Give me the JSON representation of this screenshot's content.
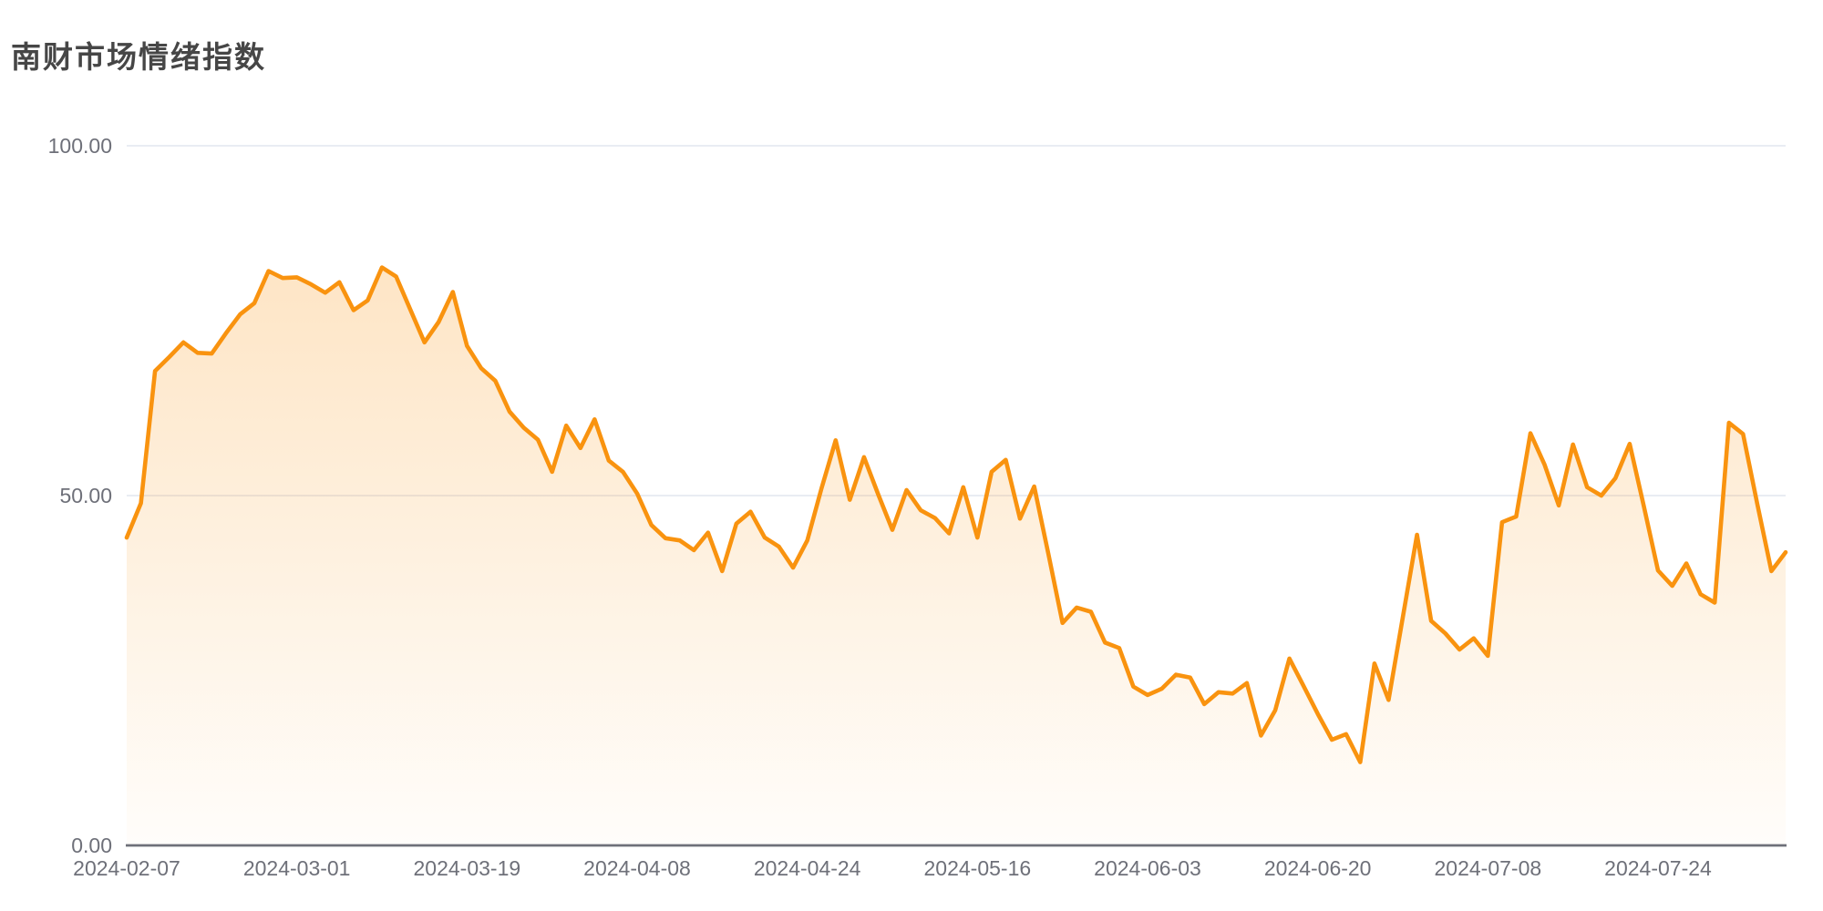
{
  "title": "南财市场情绪指数",
  "colors": {
    "line": "#F9930F",
    "area_top": "rgba(249,147,15,0.24)",
    "area_bottom": "rgba(249,147,15,0.02)",
    "grid": "#E2E6EF",
    "axis": "#6E7079",
    "label": "#6E7079",
    "title": "#464646"
  },
  "chart_data": {
    "type": "area",
    "title": "南财市场情绪指数",
    "legend": "none",
    "grid_lines": "horizontal",
    "ylim": [
      0,
      100
    ],
    "y_ticks": [
      {
        "value": 100,
        "label": "100.00"
      },
      {
        "value": 50,
        "label": "50.00"
      },
      {
        "value": 0,
        "label": "0.00"
      }
    ],
    "x_ticks": [
      {
        "index": 0,
        "label": "2024-02-07"
      },
      {
        "index": 12,
        "label": "2024-03-01"
      },
      {
        "index": 24,
        "label": "2024-03-19"
      },
      {
        "index": 36,
        "label": "2024-04-08"
      },
      {
        "index": 48,
        "label": "2024-04-24"
      },
      {
        "index": 60,
        "label": "2024-05-16"
      },
      {
        "index": 72,
        "label": "2024-06-03"
      },
      {
        "index": 84,
        "label": "2024-06-20"
      },
      {
        "index": 96,
        "label": "2024-07-08"
      },
      {
        "index": 108,
        "label": "2024-07-24"
      }
    ],
    "series": [
      {
        "name": "南财市场情绪指数",
        "values": [
          44.0,
          48.9,
          67.8,
          69.8,
          71.9,
          70.4,
          70.3,
          73.2,
          75.9,
          77.5,
          82.1,
          81.1,
          81.2,
          80.2,
          79.0,
          80.5,
          76.5,
          77.9,
          82.6,
          81.3,
          76.6,
          71.9,
          74.8,
          79.1,
          71.4,
          68.2,
          66.4,
          62.0,
          59.7,
          58.0,
          53.4,
          60.0,
          56.8,
          60.9,
          55.0,
          53.4,
          50.3,
          45.8,
          43.9,
          43.6,
          42.2,
          44.7,
          39.2,
          46.0,
          47.7,
          44.0,
          42.7,
          39.7,
          43.6,
          51.0,
          57.9,
          49.4,
          55.5,
          50.2,
          45.1,
          50.8,
          47.9,
          46.8,
          44.6,
          51.2,
          44.0,
          53.4,
          55.1,
          46.7,
          51.3,
          41.7,
          31.8,
          34.0,
          33.4,
          29.0,
          28.2,
          22.7,
          21.5,
          22.4,
          24.4,
          24.0,
          20.2,
          21.9,
          21.7,
          23.2,
          15.7,
          19.3,
          26.7,
          22.8,
          18.8,
          15.1,
          15.9,
          11.9,
          26.0,
          20.8,
          32.6,
          44.4,
          32.1,
          30.3,
          28.0,
          29.6,
          27.1,
          46.2,
          47.0,
          58.9,
          54.4,
          48.6,
          57.3,
          51.2,
          50.0,
          52.5,
          57.4,
          48.5,
          39.3,
          37.1,
          40.3,
          35.9,
          34.7,
          60.4,
          58.8,
          48.8,
          39.2,
          41.9
        ]
      }
    ]
  }
}
